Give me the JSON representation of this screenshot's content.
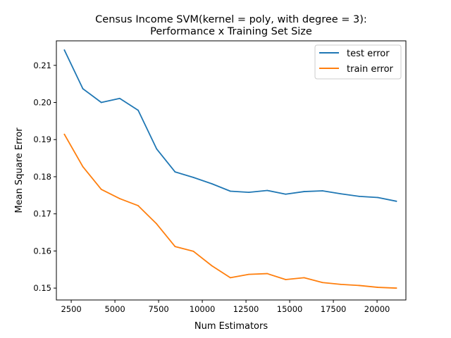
{
  "chart_data": {
    "type": "line",
    "title_line1": "Census Income SVM(kernel = poly, with degree = 3):",
    "title_line2": "Performance x Training Set Size",
    "xlabel": "Num Estimators",
    "ylabel": "Mean Square Error",
    "xlim": [
      1650,
      21650
    ],
    "ylim": [
      0.1468,
      0.2166
    ],
    "xticks": [
      2500,
      5000,
      7500,
      10000,
      12500,
      15000,
      17500,
      20000
    ],
    "yticks": [
      0.15,
      0.16,
      0.17,
      0.18,
      0.19,
      0.2,
      0.21
    ],
    "grid": false,
    "legend_position": "upper right",
    "x": [
      2110,
      3165,
      4220,
      5275,
      6330,
      7385,
      8440,
      9495,
      10550,
      11605,
      12660,
      13715,
      14770,
      15825,
      16880,
      17935,
      18990,
      20045,
      21100
    ],
    "series": [
      {
        "name": "test error",
        "color": "#1f77b4",
        "values": [
          0.2141,
          0.2037,
          0.2,
          0.2011,
          0.1979,
          0.1875,
          0.1813,
          0.1798,
          0.1781,
          0.1761,
          0.1758,
          0.1763,
          0.1753,
          0.176,
          0.1762,
          0.1754,
          0.1747,
          0.1744,
          0.1734
        ]
      },
      {
        "name": "train error",
        "color": "#ff7f0e",
        "values": [
          0.1914,
          0.1827,
          0.1766,
          0.1741,
          0.1722,
          0.1673,
          0.1612,
          0.1599,
          0.156,
          0.1528,
          0.1537,
          0.1539,
          0.1523,
          0.1528,
          0.1515,
          0.151,
          0.1507,
          0.1502,
          0.15
        ]
      }
    ]
  }
}
